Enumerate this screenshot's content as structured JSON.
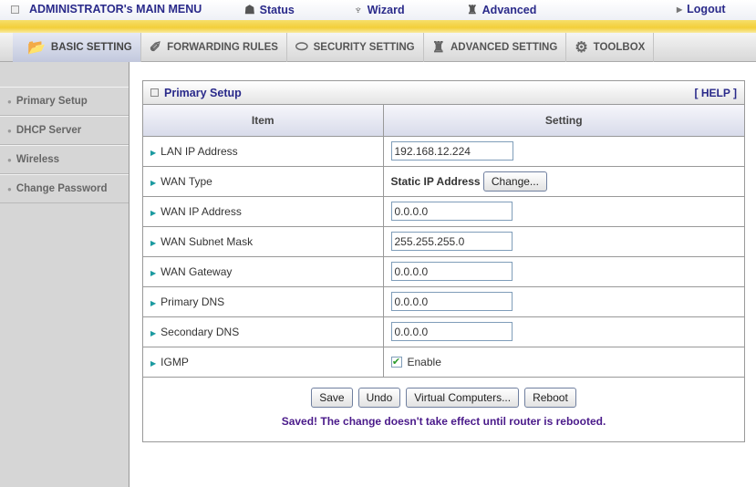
{
  "topbar": {
    "main_menu": "ADMINISTRATOR's MAIN MENU",
    "status": "Status",
    "wizard": "Wizard",
    "advanced": "Advanced",
    "logout": "Logout"
  },
  "tabs": [
    {
      "label": "BASIC SETTING",
      "icon": "folder-icon",
      "active": true
    },
    {
      "label": "FORWARDING RULES",
      "icon": "forward-icon"
    },
    {
      "label": "SECURITY SETTING",
      "icon": "lock-icon"
    },
    {
      "label": "ADVANCED SETTING",
      "icon": "advanced-icon"
    },
    {
      "label": "TOOLBOX",
      "icon": "toolbox-icon"
    }
  ],
  "sidebar": {
    "items": [
      {
        "label": "Primary Setup"
      },
      {
        "label": "DHCP Server"
      },
      {
        "label": "Wireless"
      },
      {
        "label": "Change Password"
      }
    ]
  },
  "panel": {
    "title": "Primary Setup",
    "help": "[ HELP ]",
    "col_item": "Item",
    "col_setting": "Setting",
    "rows": [
      {
        "label": "LAN IP Address",
        "value": "192.168.12.224"
      },
      {
        "label": "WAN Type",
        "value": "Static IP Address",
        "button": "Change..."
      },
      {
        "label": "WAN IP Address",
        "value": "0.0.0.0"
      },
      {
        "label": "WAN Subnet Mask",
        "value": "255.255.255.0"
      },
      {
        "label": "WAN Gateway",
        "value": "0.0.0.0"
      },
      {
        "label": "Primary DNS",
        "value": "0.0.0.0"
      },
      {
        "label": "Secondary DNS",
        "value": "0.0.0.0"
      },
      {
        "label": "IGMP",
        "checkbox_label": "Enable",
        "checked": true
      }
    ],
    "buttons": {
      "save": "Save",
      "undo": "Undo",
      "virtual": "Virtual Computers...",
      "reboot": "Reboot"
    },
    "message": "Saved! The change doesn't take effect until router is rebooted."
  },
  "colors": {
    "accent": "#2a2a8a",
    "message": "#4a1a8a",
    "yellow": "#f3cf3a"
  }
}
